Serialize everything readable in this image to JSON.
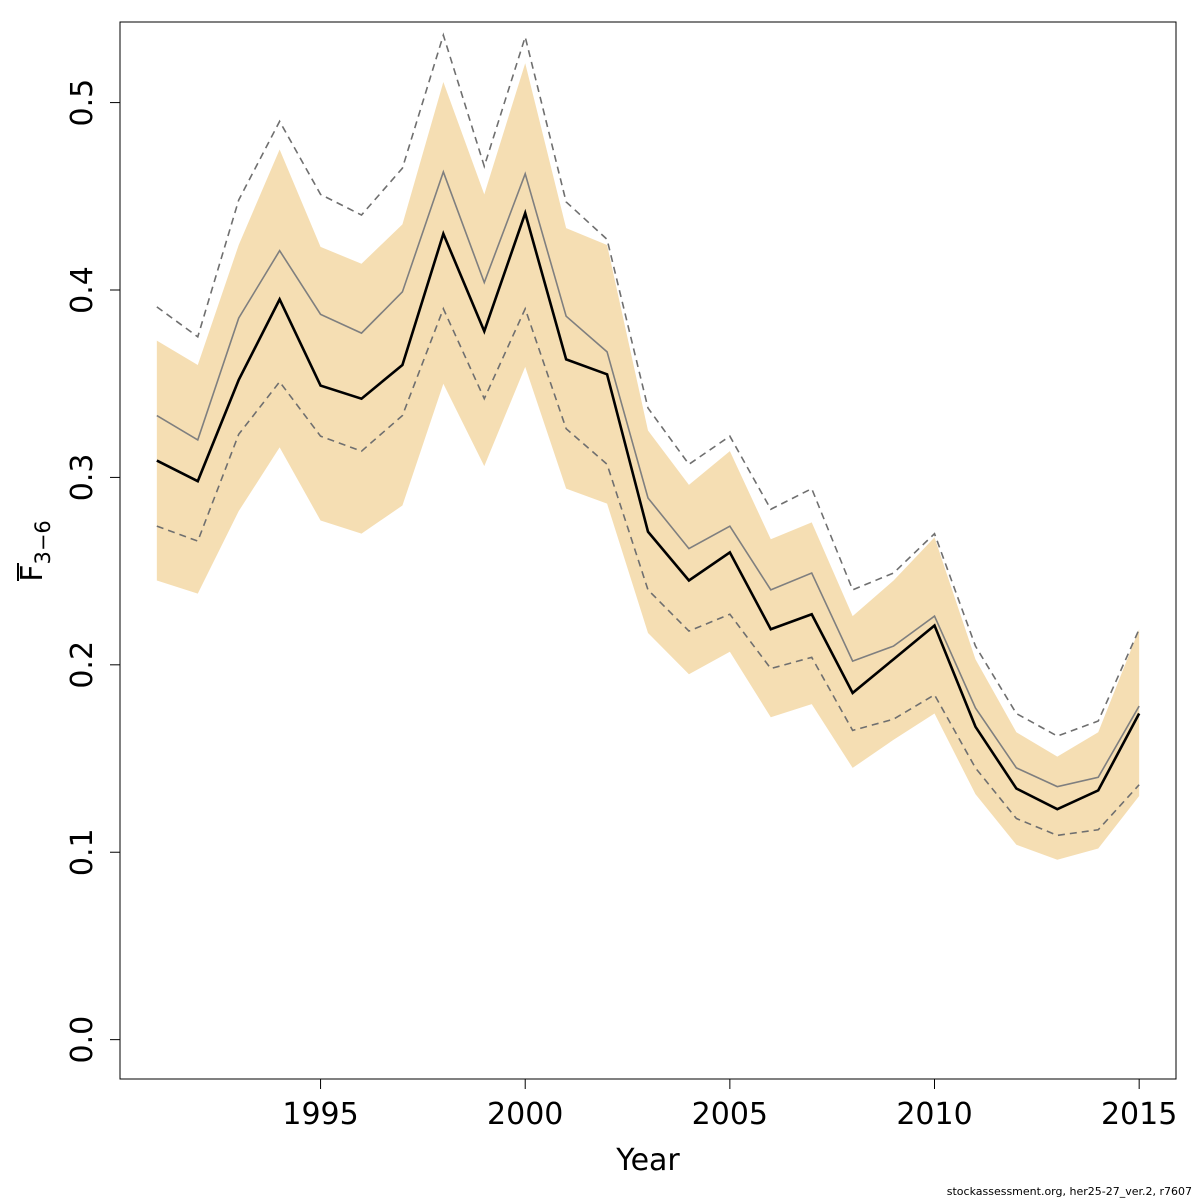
{
  "chart_data": {
    "type": "line",
    "title": "",
    "xlabel": "Year",
    "ylabel": {
      "base": "F",
      "subscript": "3−6"
    },
    "xlim": [
      1990.1,
      2015.9
    ],
    "ylim": [
      -0.021,
      0.543
    ],
    "x_ticks": [
      1995,
      2000,
      2005,
      2010,
      2015
    ],
    "y_ticks": [
      0.0,
      0.1,
      0.2,
      0.3,
      0.4,
      0.5
    ],
    "y_tick_labels": [
      "0.0",
      "0.1",
      "0.2",
      "0.3",
      "0.4",
      "0.5"
    ],
    "x": [
      1991,
      1992,
      1993,
      1994,
      1995,
      1996,
      1997,
      1998,
      1999,
      2000,
      2001,
      2002,
      2003,
      2004,
      2005,
      2006,
      2007,
      2008,
      2009,
      2010,
      2011,
      2012,
      2013,
      2014,
      2015
    ],
    "band": {
      "color": "#F5DEB3",
      "lower": [
        0.245,
        0.238,
        0.282,
        0.316,
        0.277,
        0.27,
        0.285,
        0.35,
        0.306,
        0.359,
        0.294,
        0.286,
        0.217,
        0.195,
        0.207,
        0.172,
        0.179,
        0.145,
        0.16,
        0.174,
        0.131,
        0.104,
        0.096,
        0.102,
        0.13
      ],
      "upper": [
        0.373,
        0.36,
        0.424,
        0.475,
        0.423,
        0.414,
        0.435,
        0.511,
        0.451,
        0.521,
        0.433,
        0.424,
        0.325,
        0.296,
        0.314,
        0.267,
        0.276,
        0.226,
        0.245,
        0.268,
        0.203,
        0.164,
        0.151,
        0.164,
        0.219
      ]
    },
    "series": [
      {
        "style": "solid-black",
        "color": "#000000",
        "values": [
          0.309,
          0.298,
          0.352,
          0.395,
          0.349,
          0.342,
          0.36,
          0.43,
          0.378,
          0.441,
          0.363,
          0.355,
          0.271,
          0.245,
          0.26,
          0.219,
          0.227,
          0.185,
          0.203,
          0.221,
          0.167,
          0.134,
          0.123,
          0.133,
          0.174
        ]
      },
      {
        "style": "solid-grey",
        "color": "#7f7f7f",
        "values": [
          0.333,
          0.32,
          0.385,
          0.421,
          0.387,
          0.377,
          0.399,
          0.463,
          0.404,
          0.462,
          0.386,
          0.367,
          0.289,
          0.262,
          0.274,
          0.24,
          0.249,
          0.202,
          0.21,
          0.226,
          0.177,
          0.145,
          0.135,
          0.14,
          0.178
        ]
      },
      {
        "style": "dashed-grey-upper",
        "color": "#6f6f6f",
        "values": [
          0.391,
          0.375,
          0.448,
          0.49,
          0.451,
          0.44,
          0.465,
          0.536,
          0.466,
          0.535,
          0.447,
          0.427,
          0.337,
          0.307,
          0.322,
          0.283,
          0.294,
          0.24,
          0.249,
          0.27,
          0.21,
          0.174,
          0.162,
          0.17,
          0.219
        ]
      },
      {
        "style": "dashed-grey-lower",
        "color": "#6f6f6f",
        "values": [
          0.274,
          0.266,
          0.323,
          0.351,
          0.322,
          0.314,
          0.333,
          0.39,
          0.342,
          0.39,
          0.326,
          0.307,
          0.24,
          0.218,
          0.227,
          0.198,
          0.204,
          0.165,
          0.171,
          0.184,
          0.145,
          0.118,
          0.109,
          0.112,
          0.136
        ]
      }
    ],
    "grid": false,
    "legend": "none"
  },
  "footer": "stockassessment.org, her25-27_ver.2, r7607"
}
